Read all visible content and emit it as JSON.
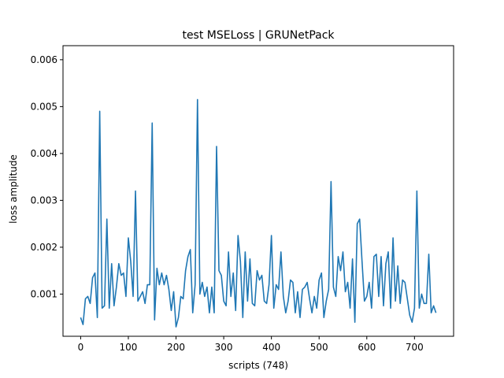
{
  "chart_data": {
    "type": "line",
    "title": "test MSELoss | GRUNetPack",
    "xlabel": "scripts (748)",
    "ylabel": "loss amplitude",
    "xlim": [
      -37,
      782
    ],
    "ylim": [
      0.0001,
      0.0063
    ],
    "xticks": [
      0,
      100,
      200,
      300,
      400,
      500,
      600,
      700
    ],
    "yticks": [
      0.001,
      0.002,
      0.003,
      0.004,
      0.005,
      0.006
    ],
    "xtick_labels": [
      "0",
      "100",
      "200",
      "300",
      "400",
      "500",
      "600",
      "700"
    ],
    "ytick_labels": [
      "0.001",
      "0.002",
      "0.003",
      "0.004",
      "0.005",
      "0.006"
    ],
    "grid": false,
    "colors": {
      "line": "#1f77b4",
      "axes": "#000000",
      "background": "#ffffff"
    },
    "series": [
      {
        "x": [
          0,
          5,
          10,
          15,
          20,
          25,
          30,
          35,
          40,
          45,
          50,
          55,
          60,
          65,
          70,
          75,
          80,
          85,
          90,
          95,
          100,
          105,
          110,
          115,
          120,
          125,
          130,
          135,
          140,
          145,
          150,
          155,
          160,
          165,
          170,
          175,
          180,
          185,
          190,
          195,
          200,
          205,
          210,
          215,
          220,
          225,
          230,
          235,
          240,
          245,
          250,
          255,
          260,
          265,
          270,
          275,
          280,
          285,
          290,
          295,
          300,
          305,
          310,
          315,
          320,
          325,
          330,
          335,
          340,
          345,
          350,
          355,
          360,
          365,
          370,
          375,
          380,
          385,
          390,
          395,
          400,
          405,
          410,
          415,
          420,
          425,
          430,
          435,
          440,
          445,
          450,
          455,
          460,
          465,
          470,
          475,
          480,
          485,
          490,
          495,
          500,
          505,
          510,
          515,
          520,
          525,
          530,
          535,
          540,
          545,
          550,
          555,
          560,
          565,
          570,
          575,
          580,
          585,
          590,
          595,
          600,
          605,
          610,
          615,
          620,
          625,
          630,
          635,
          640,
          645,
          650,
          655,
          660,
          665,
          670,
          675,
          680,
          685,
          690,
          695,
          700,
          705,
          710,
          715,
          720,
          725,
          730,
          735,
          740,
          745
        ],
        "values": [
          0.0005,
          0.00035,
          0.0009,
          0.00095,
          0.0008,
          0.00135,
          0.00145,
          0.0005,
          0.0049,
          0.0007,
          0.00075,
          0.0026,
          0.0007,
          0.00165,
          0.00075,
          0.00115,
          0.00165,
          0.0014,
          0.00145,
          0.00095,
          0.0022,
          0.0017,
          0.00095,
          0.0032,
          0.00085,
          0.00095,
          0.00105,
          0.0008,
          0.0012,
          0.0012,
          0.00465,
          0.00045,
          0.00155,
          0.0012,
          0.00145,
          0.0012,
          0.0014,
          0.0011,
          0.00065,
          0.00105,
          0.0003,
          0.0005,
          0.00095,
          0.0009,
          0.0015,
          0.0018,
          0.00195,
          0.0006,
          0.0012,
          0.00515,
          0.001,
          0.00125,
          0.00095,
          0.00115,
          0.0006,
          0.00115,
          0.0006,
          0.00415,
          0.0015,
          0.0014,
          0.00085,
          0.00075,
          0.0019,
          0.00095,
          0.00145,
          0.00065,
          0.00225,
          0.0017,
          0.0005,
          0.0019,
          0.00085,
          0.00175,
          0.0008,
          0.00075,
          0.0015,
          0.0013,
          0.0014,
          0.00085,
          0.0008,
          0.0012,
          0.00225,
          0.0007,
          0.0012,
          0.0011,
          0.0019,
          0.00095,
          0.0006,
          0.00085,
          0.0013,
          0.00125,
          0.0006,
          0.00105,
          0.0005,
          0.0011,
          0.00115,
          0.00125,
          0.0009,
          0.0006,
          0.00095,
          0.0007,
          0.0013,
          0.00145,
          0.0005,
          0.00085,
          0.0011,
          0.0034,
          0.00115,
          0.00095,
          0.0018,
          0.0015,
          0.0019,
          0.00105,
          0.00125,
          0.0007,
          0.00175,
          0.0004,
          0.0025,
          0.0026,
          0.0017,
          0.00085,
          0.00095,
          0.00125,
          0.0007,
          0.0018,
          0.00185,
          0.00095,
          0.0018,
          0.00075,
          0.00165,
          0.0019,
          0.0007,
          0.0022,
          0.00085,
          0.0016,
          0.0008,
          0.0013,
          0.00125,
          0.0009,
          0.00055,
          0.0004,
          0.0007,
          0.0032,
          0.0007,
          0.001,
          0.0008,
          0.0008,
          0.00185,
          0.0006,
          0.00075,
          0.0006
        ]
      }
    ]
  }
}
